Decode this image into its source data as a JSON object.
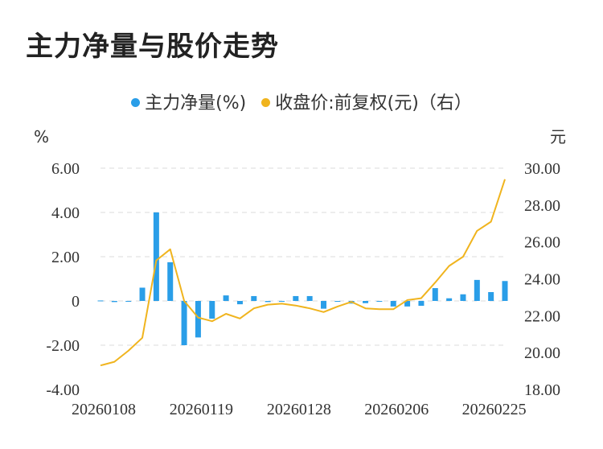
{
  "title": "主力净量与股价走势",
  "legend": {
    "series1": "主力净量(%)",
    "series2": "收盘价:前复权(元)（右）"
  },
  "colors": {
    "bar": "#2a9ee8",
    "line": "#f0b41e",
    "grid": "#e2e2e2"
  },
  "chart_data": {
    "type": "bar",
    "title": "主力净量与股价走势",
    "left_unit": "%",
    "right_unit": "元",
    "ylim_left": [
      -4,
      6
    ],
    "ylim_right": [
      18,
      30
    ],
    "yticks_left": [
      "6.00",
      "4.00",
      "2.00",
      "0",
      "-2.00",
      "-4.00"
    ],
    "yticks_right": [
      "30.00",
      "28.00",
      "26.00",
      "24.00",
      "22.00",
      "20.00",
      "18.00"
    ],
    "x_tick_labels": [
      "20260108",
      "20260119",
      "20260128",
      "20260206",
      "20260225"
    ],
    "x_tick_indices": [
      0,
      7,
      14,
      21,
      28
    ],
    "x": [
      "20260108",
      "20260109",
      "20260112",
      "20260113",
      "20260114",
      "20260115",
      "20260116",
      "20260119",
      "20260120",
      "20260121",
      "20260122",
      "20260123",
      "20260126",
      "20260127",
      "20260128",
      "20260129",
      "20260130",
      "20260202",
      "20260203",
      "20260204",
      "20260205",
      "20260206",
      "20260209",
      "20260210",
      "20260211",
      "20260212",
      "20260213",
      "20260224",
      "20260225",
      "20260226"
    ],
    "series": [
      {
        "name": "主力净量(%)",
        "type": "bar",
        "axis": "left",
        "values": [
          0.02,
          -0.05,
          0,
          0.6,
          4.0,
          1.75,
          -2.0,
          -1.65,
          -0.8,
          0.25,
          -0.15,
          0.22,
          -0.05,
          0,
          0.22,
          0.22,
          -0.35,
          0,
          -0.12,
          -0.1,
          0,
          -0.25,
          -0.25,
          -0.22,
          0.58,
          0.12,
          0.3,
          0.95,
          0.4,
          0.9
        ]
      },
      {
        "name": "收盘价:前复权(元)（右）",
        "type": "line",
        "axis": "right",
        "values": [
          19.3,
          19.5,
          20.1,
          20.8,
          25.0,
          25.6,
          22.8,
          21.9,
          21.7,
          22.1,
          21.85,
          22.4,
          22.6,
          22.65,
          22.55,
          22.4,
          22.2,
          22.5,
          22.75,
          22.4,
          22.35,
          22.35,
          22.85,
          22.95,
          23.8,
          24.7,
          25.2,
          26.6,
          27.1,
          29.4
        ]
      }
    ]
  }
}
